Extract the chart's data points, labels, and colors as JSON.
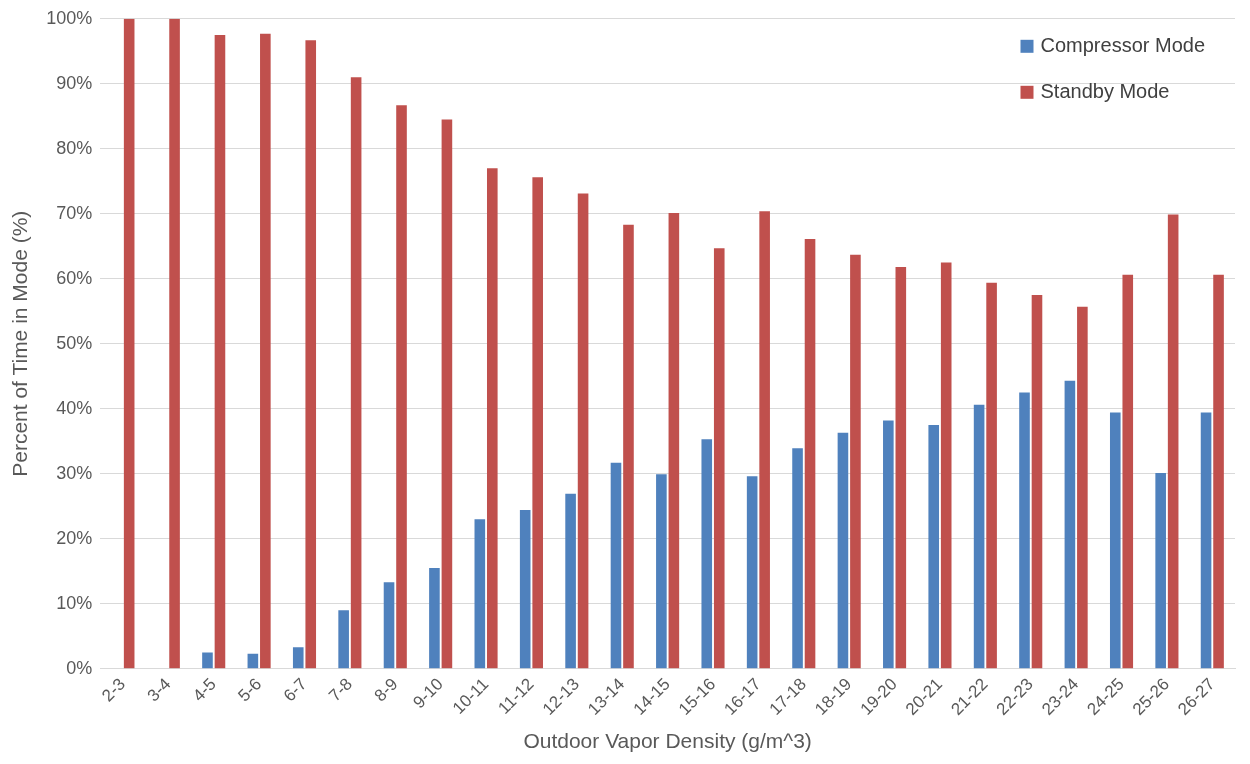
{
  "chart_data": {
    "type": "bar",
    "xlabel": "Outdoor Vapor Density (g/m^3)",
    "ylabel": "Percent of Time in Mode (%)",
    "categories": [
      "2-3",
      "3-4",
      "4-5",
      "5-6",
      "6-7",
      "7-8",
      "8-9",
      "9-10",
      "10-11",
      "11-12",
      "12-13",
      "13-14",
      "14-15",
      "15-16",
      "16-17",
      "17-18",
      "18-19",
      "19-20",
      "20-21",
      "21-22",
      "22-23",
      "23-24",
      "24-25",
      "25-26",
      "26-27"
    ],
    "series": [
      {
        "name": "Compressor Mode",
        "color": "#4f81bd",
        "values": [
          0,
          0,
          2.5,
          2.3,
          3.3,
          9.0,
          13.3,
          15.5,
          23.0,
          24.4,
          26.9,
          31.7,
          29.9,
          35.3,
          29.6,
          33.9,
          36.3,
          38.2,
          37.5,
          40.6,
          42.5,
          44.3,
          39.4,
          30.1,
          39.4
        ]
      },
      {
        "name": "Standby Mode",
        "color": "#c0504d",
        "values": [
          100,
          100,
          97.5,
          97.7,
          96.7,
          91.0,
          86.7,
          84.5,
          77.0,
          75.6,
          73.1,
          68.3,
          70.1,
          64.7,
          70.4,
          66.1,
          63.7,
          61.8,
          62.5,
          59.4,
          57.5,
          55.7,
          60.6,
          69.9,
          60.6
        ]
      }
    ],
    "ylim": [
      0,
      100
    ],
    "yticks": [
      {
        "value": 0,
        "label": "0%"
      },
      {
        "value": 10,
        "label": "10%"
      },
      {
        "value": 20,
        "label": "20%"
      },
      {
        "value": 30,
        "label": "30%"
      },
      {
        "value": 40,
        "label": "40%"
      },
      {
        "value": 50,
        "label": "50%"
      },
      {
        "value": 60,
        "label": "60%"
      },
      {
        "value": 70,
        "label": "70%"
      },
      {
        "value": 80,
        "label": "80%"
      },
      {
        "value": 90,
        "label": "90%"
      },
      {
        "value": 100,
        "label": "100%"
      }
    ],
    "grid": "y",
    "legend": "top right"
  }
}
